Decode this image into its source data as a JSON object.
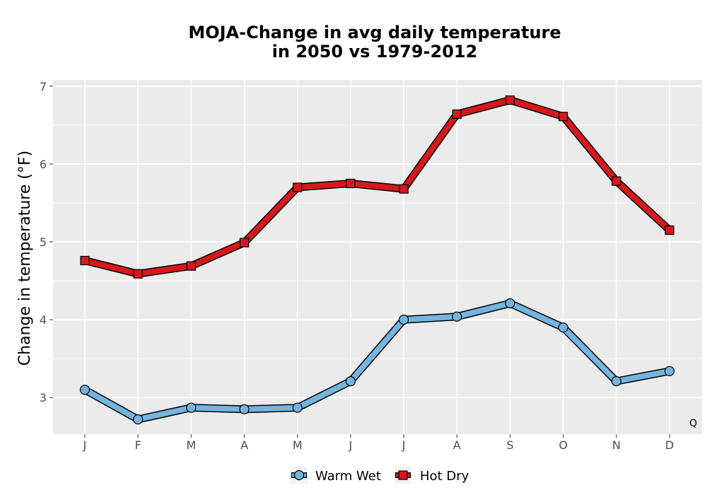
{
  "chart_data": {
    "type": "line",
    "title_lines": [
      "MOJA-Change in avg daily temperature",
      "in 2050 vs 1979-2012"
    ],
    "xlabel": "",
    "ylabel": "Change in temperature (°F)",
    "categories": [
      "J",
      "F",
      "M",
      "A",
      "M",
      "J",
      "J",
      "A",
      "S",
      "O",
      "N",
      "D"
    ],
    "yticks": [
      3,
      4,
      5,
      6,
      7
    ],
    "ylim": [
      2.53,
      7.08
    ],
    "grid": true,
    "legend_position": "bottom",
    "annotation": "Q",
    "series": [
      {
        "name": "Warm Wet",
        "marker": "circle",
        "color": "#74b5e0",
        "values": [
          3.1,
          2.72,
          2.87,
          2.85,
          2.87,
          3.21,
          4.0,
          4.04,
          4.21,
          3.9,
          3.21,
          3.34
        ]
      },
      {
        "name": "Hot Dry",
        "marker": "square",
        "color": "#d7191c",
        "values": [
          4.76,
          4.59,
          4.69,
          4.99,
          5.7,
          5.75,
          5.68,
          6.64,
          6.82,
          6.61,
          5.78,
          5.15
        ]
      }
    ]
  }
}
